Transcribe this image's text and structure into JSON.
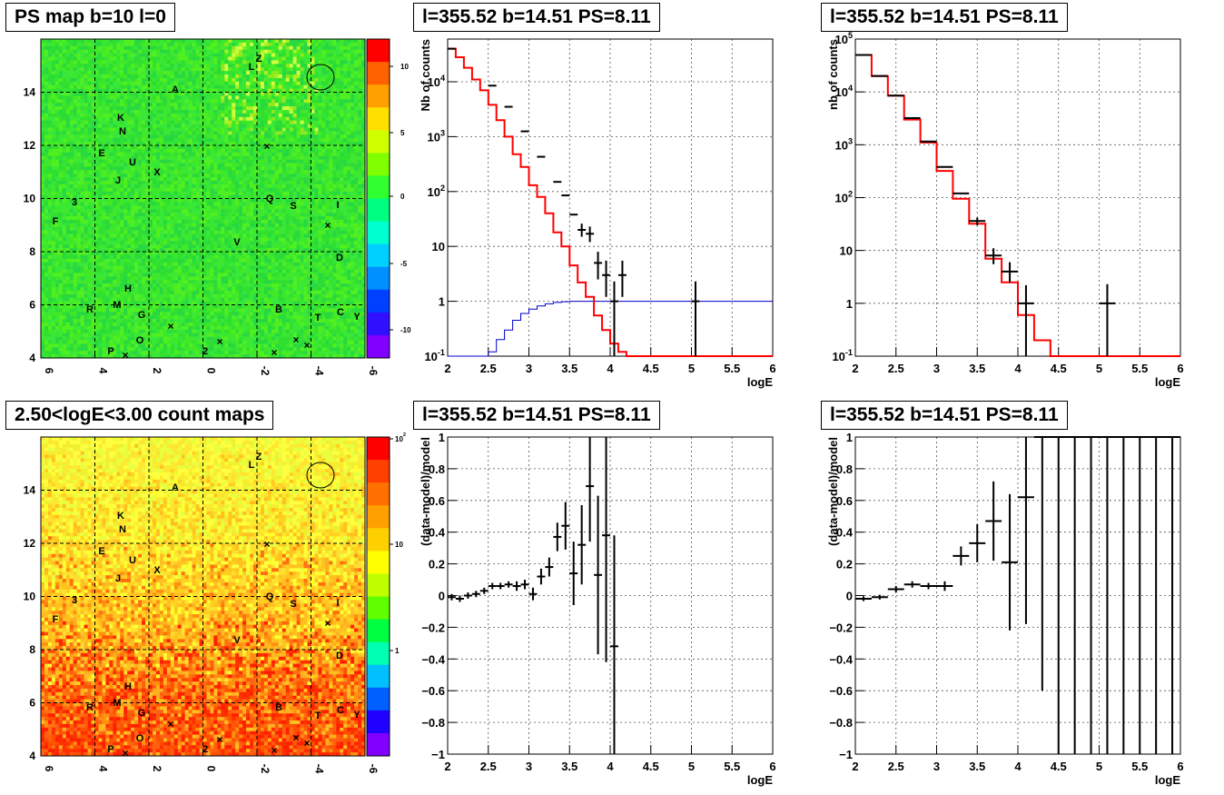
{
  "colors": {
    "red": "#ff0000",
    "blue": "#0000cc",
    "black": "#000000",
    "grid": "#555555"
  },
  "chart_data": [
    {
      "type": "heatmap",
      "title": "PS map b=10 l=0",
      "x_ticks": [
        "6",
        "4",
        "2",
        "0",
        "-2",
        "-4",
        "-6"
      ],
      "y_ticks": [
        "4",
        "6",
        "8",
        "10",
        "12",
        "14"
      ],
      "colorbar_ticks": [
        "10",
        "5",
        "0",
        "-5",
        "-10"
      ],
      "colorbar_colors": [
        "#ff0000",
        "#ff6000",
        "#ffa000",
        "#ffe000",
        "#d0ff00",
        "#80ff00",
        "#30ff30",
        "#00ff80",
        "#00ffd0",
        "#00d0ff",
        "#0090ff",
        "#0040ff",
        "#3010ff",
        "#8000ff"
      ],
      "source_labels": [
        "L",
        "Z",
        "A",
        "K",
        "N",
        "E",
        "U",
        "J",
        "X",
        "3",
        "F",
        "Q",
        "S",
        "I",
        "V",
        "D",
        "H",
        "M",
        "R",
        "G",
        "B",
        "T",
        "C",
        "Y",
        "O",
        "P",
        "2"
      ],
      "xlim": [
        6,
        -6
      ],
      "ylim": [
        4,
        16
      ],
      "zlim": [
        -12,
        12
      ],
      "grid": true
    },
    {
      "type": "step",
      "title": "l=355.52 b=14.51 PS=8.11",
      "xlabel": "logE",
      "ylabel": "Nb of counts",
      "xlim": [
        2,
        6
      ],
      "ylim": [
        0.1,
        60000
      ],
      "log_y": true,
      "x_ticks": [
        "2",
        "2.5",
        "3",
        "3.5",
        "4",
        "4.5",
        "5",
        "5.5",
        "6"
      ],
      "y_ticks": [
        "10^-1",
        "1",
        "10",
        "10^2",
        "10^3",
        "10^4"
      ],
      "grid": true,
      "series": [
        {
          "color": "red",
          "bin_width": 0.1,
          "x_start": 2.0,
          "values": [
            40000,
            28000,
            18000,
            11000,
            7000,
            3800,
            2000,
            1000,
            480,
            280,
            130,
            80,
            40,
            18,
            10,
            4.5,
            2.2,
            1.2,
            0.55,
            0.3,
            0.17,
            0.12,
            0.1,
            0.1,
            0.1,
            0.1,
            0.1,
            0.1,
            0.1,
            0.1,
            0.1,
            0.1,
            0.1,
            0.1,
            0.1,
            0.1,
            0.1,
            0.1,
            0.1,
            0.1
          ]
        },
        {
          "color": "blue",
          "bin_width": 0.1,
          "x_start": 2.0,
          "values": [
            0.1,
            0.1,
            0.1,
            0.1,
            0.1,
            0.12,
            0.2,
            0.3,
            0.45,
            0.6,
            0.72,
            0.82,
            0.9,
            0.95,
            0.98,
            1.0,
            1.0,
            1.0,
            1.0,
            1.0,
            1.0,
            1.0,
            1.0,
            1.0,
            1.0,
            1.0,
            1.0,
            1.0,
            1.0,
            1.0,
            1.0,
            1.0,
            1.0,
            1.0,
            1.0,
            1.0,
            1.0,
            1.0,
            1.0,
            1.0
          ]
        },
        {
          "color": "black",
          "type": "errorbar",
          "half_width": 0.05,
          "points": [
            [
              2.05,
              40000,
              0,
              0
            ],
            [
              2.55,
              8500,
              0,
              0
            ],
            [
              2.75,
              3500,
              0,
              0
            ],
            [
              2.95,
              1250,
              0,
              0
            ],
            [
              3.15,
              430,
              0,
              0
            ],
            [
              3.35,
              150,
              0,
              0
            ],
            [
              3.45,
              85,
              0,
              0
            ],
            [
              3.55,
              38,
              0,
              0
            ],
            [
              3.65,
              20,
              5,
              6
            ],
            [
              3.75,
              17,
              5,
              6
            ],
            [
              3.85,
              5,
              2.5,
              3
            ],
            [
              3.95,
              3,
              1.8,
              2.5
            ],
            [
              4.05,
              1,
              0.9,
              1.3
            ],
            [
              4.15,
              3,
              1.8,
              2.5
            ],
            [
              5.05,
              1,
              0.9,
              1.3
            ]
          ]
        }
      ]
    },
    {
      "type": "step",
      "title": "l=355.52 b=14.51 PS=8.11",
      "xlabel": "logE",
      "ylabel": "nb of counts",
      "xlim": [
        2,
        6
      ],
      "ylim": [
        0.1,
        100000
      ],
      "log_y": true,
      "x_ticks": [
        "2",
        "2.5",
        "3",
        "3.5",
        "4",
        "4.5",
        "5",
        "5.5",
        "6"
      ],
      "y_ticks": [
        "10^-1",
        "1",
        "10",
        "10^2",
        "10^3",
        "10^4",
        "10^5"
      ],
      "grid": true,
      "series": [
        {
          "color": "red",
          "bin_width": 0.2,
          "x_start": 2.0,
          "values": [
            50000,
            20000,
            8500,
            3000,
            1100,
            320,
            95,
            32,
            7,
            2.5,
            0.6,
            0.2,
            0.1,
            0.1,
            0.1,
            0.1,
            0.1,
            0.1,
            0.1,
            0.1
          ]
        },
        {
          "color": "black",
          "type": "errorbar",
          "half_width": 0.1,
          "points": [
            [
              2.1,
              50000,
              0,
              0
            ],
            [
              2.3,
              20000,
              0,
              0
            ],
            [
              2.5,
              8500,
              0,
              0
            ],
            [
              2.7,
              3200,
              0,
              0
            ],
            [
              2.9,
              1150,
              0,
              0
            ],
            [
              3.1,
              380,
              0,
              0
            ],
            [
              3.3,
              120,
              0,
              0
            ],
            [
              3.5,
              36,
              6,
              6
            ],
            [
              3.7,
              8,
              2.5,
              3
            ],
            [
              3.9,
              4,
              1.5,
              2
            ],
            [
              4.1,
              1,
              0.9,
              1.2
            ],
            [
              5.1,
              1,
              0.9,
              1.3
            ]
          ]
        }
      ]
    },
    {
      "type": "heatmap",
      "title": "2.50<logE<3.00 count maps",
      "x_ticks": [
        "6",
        "4",
        "2",
        "0",
        "-2",
        "-4",
        "-6"
      ],
      "y_ticks": [
        "4",
        "6",
        "8",
        "10",
        "12",
        "14"
      ],
      "colorbar_ticks": [
        "10^2",
        "10",
        "1"
      ],
      "colorbar_colors": [
        "#ff0000",
        "#ff4000",
        "#ff7000",
        "#ffa000",
        "#ffd000",
        "#ffff00",
        "#c0ff00",
        "#60ff00",
        "#00ff40",
        "#00ffb0",
        "#00c0ff",
        "#0060ff",
        "#2000ff",
        "#8000ff"
      ],
      "source_labels": [
        "L",
        "Z",
        "A",
        "K",
        "N",
        "E",
        "U",
        "J",
        "X",
        "3",
        "F",
        "Q",
        "S",
        "I",
        "V",
        "D",
        "H",
        "M",
        "R",
        "G",
        "B",
        "T",
        "C",
        "Y",
        "O",
        "P",
        "2"
      ],
      "xlim": [
        6,
        -6
      ],
      "ylim": [
        4,
        16
      ],
      "grid": true
    },
    {
      "type": "errorbar",
      "title": "l=355.52 b=14.51 PS=8.11",
      "xlabel": "logE",
      "ylabel": "(data-model)/model",
      "xlim": [
        2,
        6
      ],
      "ylim": [
        -1,
        1
      ],
      "x_ticks": [
        "2",
        "2.5",
        "3",
        "3.5",
        "4",
        "4.5",
        "5",
        "5.5",
        "6"
      ],
      "y_ticks": [
        "−1",
        "−0.8",
        "−0.6",
        "−0.4",
        "−0.2",
        "0",
        "0.2",
        "0.4",
        "0.6",
        "0.8",
        "1"
      ],
      "grid": true,
      "half_width": 0.05,
      "points": [
        [
          2.05,
          -0.01,
          0.02
        ],
        [
          2.15,
          -0.02,
          0.02
        ],
        [
          2.25,
          0.0,
          0.02
        ],
        [
          2.35,
          0.01,
          0.02
        ],
        [
          2.45,
          0.03,
          0.02
        ],
        [
          2.55,
          0.06,
          0.02
        ],
        [
          2.65,
          0.06,
          0.02
        ],
        [
          2.75,
          0.07,
          0.02
        ],
        [
          2.85,
          0.06,
          0.03
        ],
        [
          2.95,
          0.07,
          0.03
        ],
        [
          3.05,
          0.01,
          0.04
        ],
        [
          3.15,
          0.12,
          0.05
        ],
        [
          3.25,
          0.18,
          0.06
        ],
        [
          3.35,
          0.37,
          0.09
        ],
        [
          3.45,
          0.44,
          0.15
        ],
        [
          3.55,
          0.14,
          0.2
        ],
        [
          3.65,
          0.32,
          0.25
        ],
        [
          3.75,
          0.69,
          0.35
        ],
        [
          3.85,
          0.13,
          0.5
        ],
        [
          3.95,
          0.38,
          0.8
        ],
        [
          4.05,
          -0.32,
          0.7
        ]
      ]
    },
    {
      "type": "errorbar",
      "title": "l=355.52 b=14.51 PS=8.11",
      "xlabel": "logE",
      "ylabel": "(data-model)/model",
      "xlim": [
        2,
        6
      ],
      "ylim": [
        -1,
        1
      ],
      "x_ticks": [
        "2",
        "2.5",
        "3",
        "3.5",
        "4",
        "4.5",
        "5",
        "5.5",
        "6"
      ],
      "y_ticks": [
        "−1",
        "−0.8",
        "−0.6",
        "−0.4",
        "−0.2",
        "0",
        "0.2",
        "0.4",
        "0.6",
        "0.8",
        "1"
      ],
      "grid": true,
      "half_width": 0.1,
      "points": [
        [
          2.1,
          -0.02,
          0.015
        ],
        [
          2.3,
          -0.01,
          0.015
        ],
        [
          2.5,
          0.04,
          0.02
        ],
        [
          2.7,
          0.07,
          0.02
        ],
        [
          2.9,
          0.06,
          0.02
        ],
        [
          3.1,
          0.06,
          0.03
        ],
        [
          3.3,
          0.25,
          0.06
        ],
        [
          3.5,
          0.33,
          0.12
        ],
        [
          3.7,
          0.47,
          0.25
        ],
        [
          3.9,
          0.21,
          0.43
        ],
        [
          4.1,
          0.62,
          0.8
        ],
        [
          4.3,
          1.0,
          1.6
        ],
        [
          4.5,
          1.0,
          2.0
        ],
        [
          4.7,
          1.0,
          2.0
        ],
        [
          4.9,
          1.0,
          2.0
        ],
        [
          5.1,
          1.0,
          2.0
        ],
        [
          5.3,
          1.0,
          2.0
        ],
        [
          5.5,
          1.0,
          2.0
        ],
        [
          5.7,
          1.0,
          2.0
        ],
        [
          5.9,
          1.0,
          2.0
        ]
      ]
    }
  ]
}
